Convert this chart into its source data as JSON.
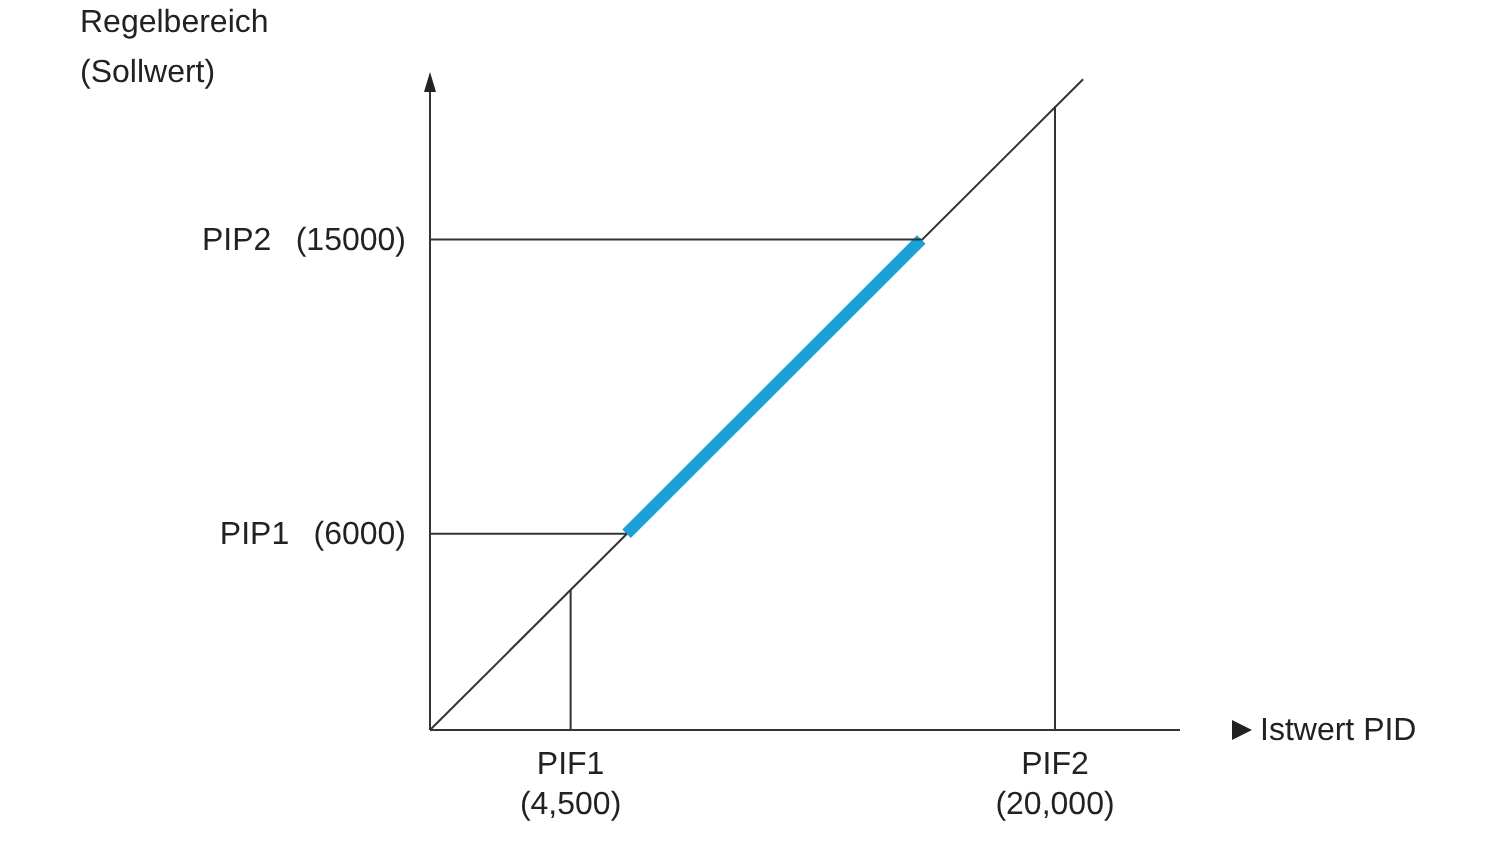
{
  "chart_data": {
    "type": "line",
    "xlabel": "Istwert PID",
    "ylabel": "Regelbereich\n(Sollwert)",
    "xlim": [
      0,
      24000
    ],
    "ylim": [
      0,
      20000
    ],
    "xticks": [
      {
        "value": 4500,
        "label": "(4,500)"
      },
      {
        "value": 20000,
        "label": "(20,000)"
      }
    ],
    "yticks": [
      {
        "value": 6000,
        "label": "(6000)"
      },
      {
        "value": 15000,
        "label": "(15000)"
      }
    ],
    "annotations": [
      "PIF1",
      "PIF2",
      "PIP1",
      "PIP2"
    ],
    "grid": false,
    "marker": "none",
    "line_style": "solid",
    "series": [
      {
        "color": "#333333",
        "x": [
          0,
          20900
        ],
        "values": [
          0,
          19900
        ]
      },
      {
        "color": "#1ba1d8",
        "x": [
          6290,
          15720
        ],
        "values": [
          6000,
          15000
        ]
      },
      {
        "color": "#333333",
        "x": [
          4500,
          4500
        ],
        "values": [
          0,
          4290
        ]
      },
      {
        "color": "#333333",
        "x": [
          20000,
          20000
        ],
        "values": [
          0,
          19080
        ]
      },
      {
        "color": "#333333",
        "x": [
          0,
          6290
        ],
        "values": [
          6000,
          6000
        ]
      },
      {
        "color": "#333333",
        "x": [
          0,
          15720
        ],
        "values": [
          15000,
          15000
        ]
      }
    ]
  }
}
